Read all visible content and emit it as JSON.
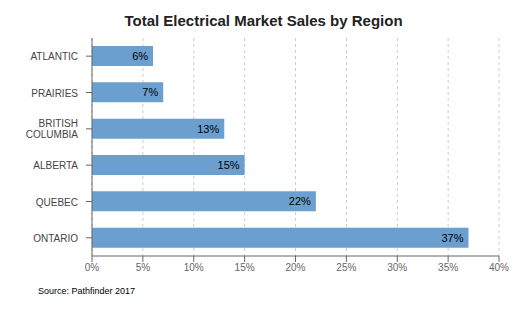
{
  "chart_data": {
    "type": "bar",
    "orientation": "horizontal",
    "title": "Total Electrical Market Sales by Region",
    "categories": [
      "ONTARIO",
      "QUEBEC",
      "ALBERTA",
      "BRITISH\nCOLUMBIA",
      "PRAIRIES",
      "ATLANTIC"
    ],
    "values": [
      37,
      22,
      15,
      13,
      7,
      6
    ],
    "value_labels": [
      "37%",
      "22%",
      "15%",
      "13%",
      "7%",
      "6%"
    ],
    "data_labels": true,
    "color": "#6A9FD0",
    "xlim": [
      0,
      40
    ],
    "xticks": [
      {
        "value": 0,
        "label": "0%"
      },
      {
        "value": 5,
        "label": "5%"
      },
      {
        "value": 10,
        "label": "10%"
      },
      {
        "value": 15,
        "label": "15%"
      },
      {
        "value": 20,
        "label": "20%"
      },
      {
        "value": 25,
        "label": "25%"
      },
      {
        "value": 30,
        "label": "30%"
      },
      {
        "value": 35,
        "label": "35%"
      },
      {
        "value": 40,
        "label": "40%"
      }
    ],
    "grid": true,
    "annotations": [
      "Source: Pathfinder 2017"
    ]
  }
}
